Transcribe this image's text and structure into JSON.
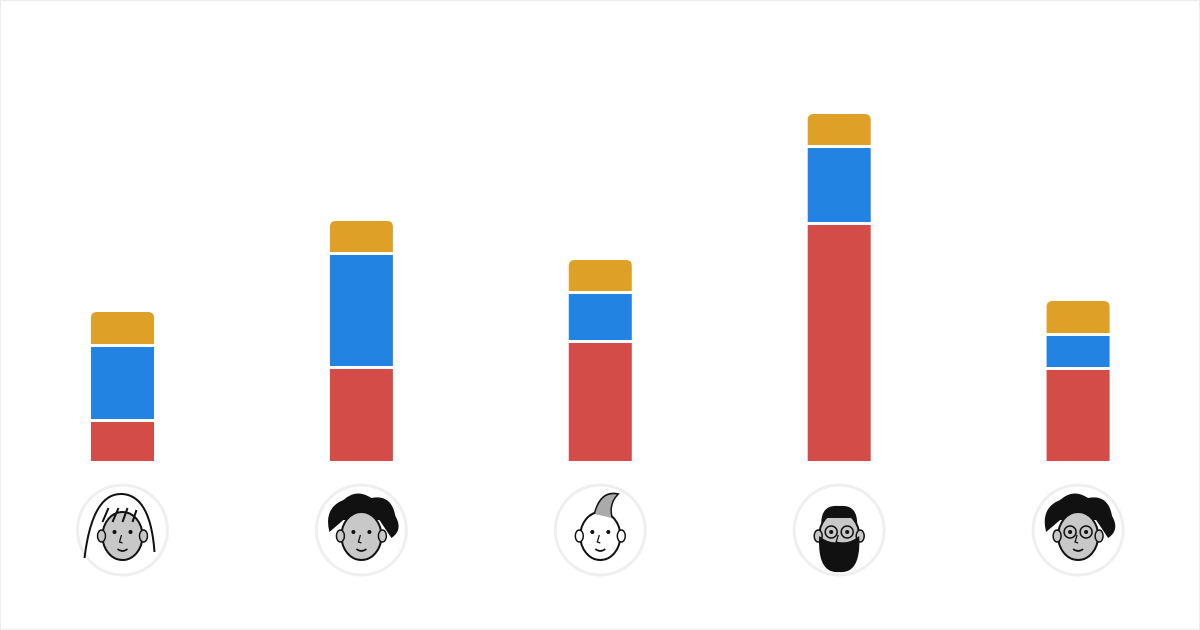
{
  "chart_data": {
    "type": "bar",
    "stacked": true,
    "title": "",
    "xlabel": "",
    "ylabel": "",
    "ylim": [
      0,
      350
    ],
    "grid": false,
    "legend": "none",
    "categories": [
      "person-1",
      "person-2",
      "person-3",
      "person-4",
      "person-5"
    ],
    "series": [
      {
        "color": "#d44c47",
        "values": [
          39,
          92,
          118,
          236,
          91
        ]
      },
      {
        "color": "#2383e2",
        "values": [
          75,
          114,
          49,
          77,
          34
        ]
      },
      {
        "color": "#dfa027",
        "values": [
          35,
          34,
          34,
          34,
          35
        ]
      }
    ],
    "category_markers": [
      "avatar-long-hair-woman",
      "avatar-curly-hair-man",
      "avatar-quiff-man",
      "avatar-bearded-man-glasses",
      "avatar-curly-hair-woman-glasses"
    ]
  }
}
